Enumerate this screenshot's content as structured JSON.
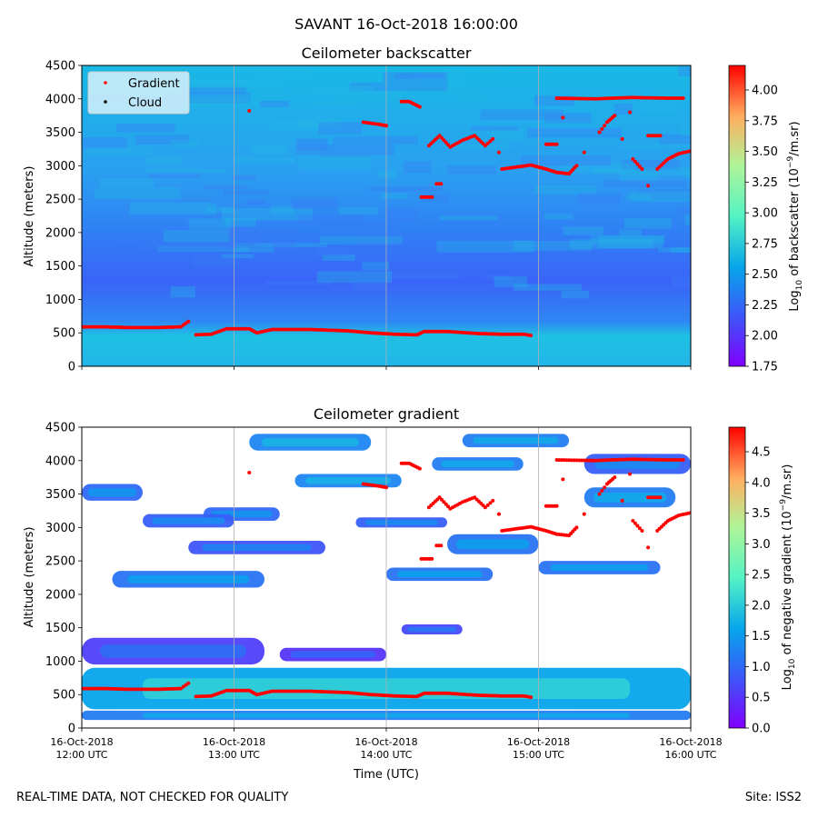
{
  "figure_title": "SAVANT 16-Oct-2018 16:00:00",
  "footer": {
    "left": "REAL-TIME DATA, NOT CHECKED FOR QUALITY",
    "right": "Site: ISS2"
  },
  "x_axis": {
    "label": "Time (UTC)",
    "ticks": [
      {
        "line1": "16-Oct-2018",
        "line2": "12:00 UTC",
        "hour": 12
      },
      {
        "line1": "16-Oct-2018",
        "line2": "13:00 UTC",
        "hour": 13
      },
      {
        "line1": "16-Oct-2018",
        "line2": "14:00 UTC",
        "hour": 14
      },
      {
        "line1": "16-Oct-2018",
        "line2": "15:00 UTC",
        "hour": 15
      },
      {
        "line1": "16-Oct-2018",
        "line2": "16:00 UTC",
        "hour": 16
      }
    ]
  },
  "legend": {
    "gradient": "Gradient",
    "cloud": "Cloud"
  },
  "colors": {
    "marker": "#ff0000",
    "grid": "#b0b0b0"
  },
  "chart_data": [
    {
      "type": "heatmap",
      "title": "Ceilometer backscatter",
      "ylabel": "Altitude (meters)",
      "ylim": [
        0,
        4500
      ],
      "yticks": [
        "0",
        "500",
        "1000",
        "1500",
        "2000",
        "2500",
        "3000",
        "3500",
        "4000",
        "4500"
      ],
      "colorbar": {
        "label": "Log10 of backscatter (10^-9/m.sr)",
        "label_main": "Log",
        "label_sub": "10",
        "label_rest": " of backscatter (10",
        "label_sup": "−9",
        "label_end": "/m.sr)",
        "range": [
          1.75,
          4.2
        ],
        "ticks": [
          "1.75",
          "2.00",
          "2.25",
          "2.50",
          "2.75",
          "3.00",
          "3.25",
          "3.50",
          "3.75",
          "4.00"
        ]
      },
      "gradient_points": [
        {
          "t": 12.0,
          "alt": 590
        },
        {
          "t": 12.15,
          "alt": 590
        },
        {
          "t": 12.3,
          "alt": 580
        },
        {
          "t": 12.5,
          "alt": 580
        },
        {
          "t": 12.65,
          "alt": 590
        },
        {
          "t": 12.7,
          "alt": 670
        },
        {
          "t": 12.75,
          "alt": 470
        },
        {
          "t": 12.85,
          "alt": 480
        },
        {
          "t": 12.95,
          "alt": 560
        },
        {
          "t": 13.1,
          "alt": 560
        },
        {
          "t": 13.15,
          "alt": 500
        },
        {
          "t": 13.25,
          "alt": 550
        },
        {
          "t": 13.5,
          "alt": 550
        },
        {
          "t": 13.75,
          "alt": 530
        },
        {
          "t": 13.9,
          "alt": 500
        },
        {
          "t": 14.05,
          "alt": 480
        },
        {
          "t": 14.2,
          "alt": 470
        },
        {
          "t": 14.25,
          "alt": 520
        },
        {
          "t": 14.4,
          "alt": 520
        },
        {
          "t": 14.6,
          "alt": 490
        },
        {
          "t": 14.75,
          "alt": 480
        },
        {
          "t": 14.9,
          "alt": 480
        },
        {
          "t": 14.95,
          "alt": 460
        },
        {
          "t": 13.1,
          "alt": 3820
        },
        {
          "t": 13.85,
          "alt": 3650
        },
        {
          "t": 13.95,
          "alt": 3620
        },
        {
          "t": 14.0,
          "alt": 3600
        },
        {
          "t": 14.1,
          "alt": 3960
        },
        {
          "t": 14.15,
          "alt": 3960
        },
        {
          "t": 14.22,
          "alt": 3880
        },
        {
          "t": 14.23,
          "alt": 2530
        },
        {
          "t": 14.3,
          "alt": 2530
        },
        {
          "t": 14.33,
          "alt": 2730
        },
        {
          "t": 14.36,
          "alt": 2730
        },
        {
          "t": 14.28,
          "alt": 3300
        },
        {
          "t": 14.35,
          "alt": 3450
        },
        {
          "t": 14.42,
          "alt": 3280
        },
        {
          "t": 14.5,
          "alt": 3380
        },
        {
          "t": 14.58,
          "alt": 3450
        },
        {
          "t": 14.65,
          "alt": 3300
        },
        {
          "t": 14.7,
          "alt": 3400
        },
        {
          "t": 14.74,
          "alt": 3200
        },
        {
          "t": 14.76,
          "alt": 2950
        },
        {
          "t": 14.95,
          "alt": 3010
        },
        {
          "t": 15.05,
          "alt": 2950
        },
        {
          "t": 15.12,
          "alt": 2900
        },
        {
          "t": 15.2,
          "alt": 2880
        },
        {
          "t": 15.25,
          "alt": 3000
        },
        {
          "t": 15.3,
          "alt": 3200
        },
        {
          "t": 15.4,
          "alt": 3500
        },
        {
          "t": 15.45,
          "alt": 3650
        },
        {
          "t": 15.5,
          "alt": 3750
        },
        {
          "t": 15.55,
          "alt": 3400
        },
        {
          "t": 15.6,
          "alt": 3800
        },
        {
          "t": 15.62,
          "alt": 3100
        },
        {
          "t": 15.68,
          "alt": 2950
        },
        {
          "t": 15.72,
          "alt": 2700
        },
        {
          "t": 15.78,
          "alt": 2950
        },
        {
          "t": 15.85,
          "alt": 3100
        },
        {
          "t": 15.92,
          "alt": 3180
        },
        {
          "t": 16.0,
          "alt": 3220
        },
        {
          "t": 15.05,
          "alt": 3320
        },
        {
          "t": 15.12,
          "alt": 3320
        },
        {
          "t": 15.16,
          "alt": 3720
        },
        {
          "t": 15.72,
          "alt": 3450
        },
        {
          "t": 15.8,
          "alt": 3450
        },
        {
          "t": 15.12,
          "alt": 4010
        },
        {
          "t": 15.38,
          "alt": 4000
        },
        {
          "t": 15.48,
          "alt": 4010
        },
        {
          "t": 15.62,
          "alt": 4020
        },
        {
          "t": 15.85,
          "alt": 4010
        },
        {
          "t": 15.95,
          "alt": 4010
        }
      ]
    },
    {
      "type": "heatmap",
      "title": "Ceilometer gradient",
      "ylabel": "Altitude (meters)",
      "ylim": [
        0,
        4500
      ],
      "yticks": [
        "0",
        "500",
        "1000",
        "1500",
        "2000",
        "2500",
        "3000",
        "3500",
        "4000",
        "4500"
      ],
      "colorbar": {
        "label": "Log10 of negative gradient (10^-9/m.sr)",
        "label_main": "Log",
        "label_sub": "10",
        "label_rest": " of negative gradient (10",
        "label_sup": "−9",
        "label_end": "/m.sr)",
        "range": [
          0.0,
          4.9
        ],
        "ticks": [
          "0.0",
          "0.5",
          "1.0",
          "1.5",
          "2.0",
          "2.5",
          "3.0",
          "3.5",
          "4.0",
          "4.5"
        ]
      },
      "bands": [
        {
          "t0": 12.0,
          "t1": 16.0,
          "a0": 280,
          "a1": 900,
          "level": 1.6
        },
        {
          "t0": 12.0,
          "t1": 16.0,
          "a0": 120,
          "a1": 260,
          "level": 1.2
        },
        {
          "t0": 12.0,
          "t1": 13.2,
          "a0": 950,
          "a1": 1350,
          "level": 0.6
        },
        {
          "t0": 13.3,
          "t1": 14.0,
          "a0": 1000,
          "a1": 1200,
          "level": 0.5
        },
        {
          "t0": 14.1,
          "t1": 14.5,
          "a0": 1400,
          "a1": 1550,
          "level": 0.7
        },
        {
          "t0": 12.2,
          "t1": 13.2,
          "a0": 2100,
          "a1": 2350,
          "level": 1.1
        },
        {
          "t0": 14.0,
          "t1": 14.7,
          "a0": 2200,
          "a1": 2400,
          "level": 1.1
        },
        {
          "t0": 15.0,
          "t1": 15.8,
          "a0": 2300,
          "a1": 2500,
          "level": 1.1
        },
        {
          "t0": 12.0,
          "t1": 12.4,
          "a0": 3400,
          "a1": 3650,
          "level": 1.0
        },
        {
          "t0": 12.8,
          "t1": 13.3,
          "a0": 3100,
          "a1": 3300,
          "level": 1.0
        },
        {
          "t0": 13.4,
          "t1": 14.1,
          "a0": 3600,
          "a1": 3800,
          "level": 1.3
        },
        {
          "t0": 14.3,
          "t1": 14.9,
          "a0": 3850,
          "a1": 4050,
          "level": 1.2
        },
        {
          "t0": 12.4,
          "t1": 13.0,
          "a0": 3000,
          "a1": 3200,
          "level": 0.9
        },
        {
          "t0": 12.7,
          "t1": 13.6,
          "a0": 2600,
          "a1": 2800,
          "level": 0.8
        },
        {
          "t0": 13.8,
          "t1": 14.4,
          "a0": 3000,
          "a1": 3150,
          "level": 0.9
        },
        {
          "t0": 14.4,
          "t1": 15.0,
          "a0": 2600,
          "a1": 2900,
          "level": 1.1
        },
        {
          "t0": 13.1,
          "t1": 13.9,
          "a0": 4150,
          "a1": 4400,
          "level": 1.3
        },
        {
          "t0": 14.5,
          "t1": 15.2,
          "a0": 4200,
          "a1": 4400,
          "level": 1.2
        },
        {
          "t0": 15.3,
          "t1": 16.0,
          "a0": 3800,
          "a1": 4100,
          "level": 0.9
        },
        {
          "t0": 15.3,
          "t1": 15.9,
          "a0": 3300,
          "a1": 3600,
          "level": 1.2
        }
      ]
    }
  ]
}
